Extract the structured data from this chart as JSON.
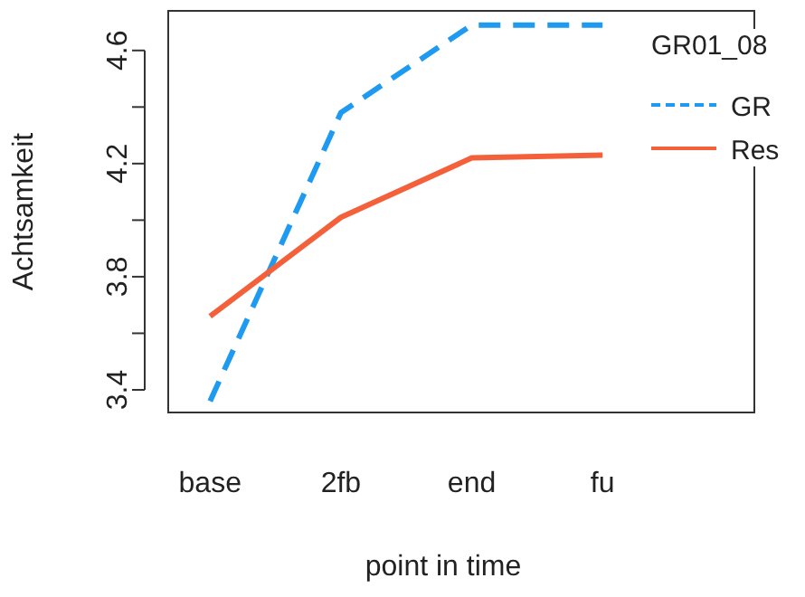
{
  "chart_data": {
    "type": "line",
    "xlabel": "point in time",
    "ylabel": "Achtsamkeit",
    "legend_title": "GR01_08",
    "categories": [
      "base",
      "2fb",
      "end",
      "fu"
    ],
    "series": [
      {
        "name": "GR",
        "color": "#1e9bf0",
        "line_style": "dashed",
        "values": [
          3.36,
          4.38,
          4.69,
          4.69
        ]
      },
      {
        "name": "Res",
        "color": "#f4603a",
        "line_style": "solid",
        "values": [
          3.66,
          4.01,
          4.22,
          4.23
        ]
      }
    ],
    "ylim": [
      3.32,
      4.74
    ],
    "yticks": [
      3.4,
      3.8,
      4.2,
      4.6
    ],
    "grid": false,
    "legend": "right",
    "marker": "none"
  }
}
